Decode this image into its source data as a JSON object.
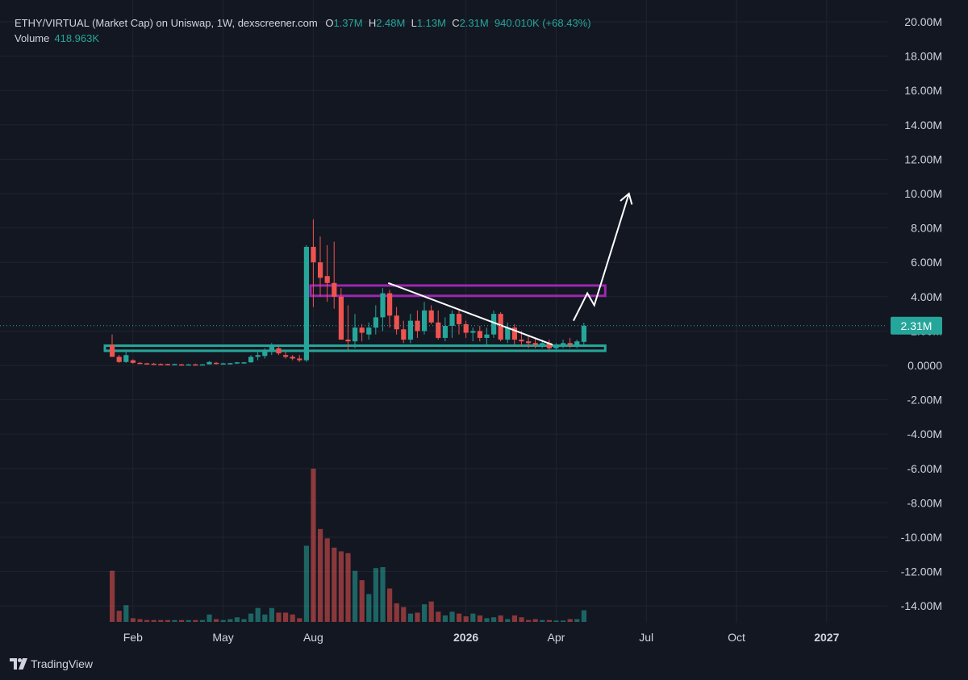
{
  "legend": {
    "title": "ETHY/VIRTUAL (Market Cap) on Uniswap, 1W, dexscreener.com",
    "o_key": "O",
    "o_val": "1.37M",
    "h_key": "H",
    "h_val": "2.48M",
    "l_key": "L",
    "l_val": "1.13M",
    "c_key": "C",
    "c_val": "2.31M",
    "change": "940.010K (+68.43%)",
    "volume_label": "Volume",
    "volume_value": "418.963K"
  },
  "brand": {
    "name": "TradingView",
    "icon": "tradingview-logo-icon"
  },
  "colors": {
    "bg": "#131722",
    "up": "#26a69a",
    "down": "#ef5350",
    "grid": "#1f2430",
    "support_box": "#26a69a",
    "resistance_box": "#9c27b0",
    "drawing": "#ffffff",
    "price_tag": "#26a69a"
  },
  "chart_data": {
    "type": "candlestick",
    "y_ticks": [
      "20.00M",
      "18.00M",
      "16.00M",
      "14.00M",
      "12.00M",
      "10.00M",
      "8.00M",
      "6.00M",
      "4.00M",
      "2.00M",
      "0.0000",
      "-2.00M",
      "-4.00M",
      "-6.00M",
      "-8.00M",
      "-10.00M",
      "-12.00M",
      "-14.00M"
    ],
    "y_tick_values": [
      20,
      18,
      16,
      14,
      12,
      10,
      8,
      6,
      4,
      2,
      0,
      -2,
      -4,
      -6,
      -8,
      -10,
      -12,
      -14
    ],
    "ylim_millions": [
      -14.8,
      21
    ],
    "x_ticks": [
      {
        "label": "Feb",
        "week": 3,
        "bold": false
      },
      {
        "label": "May",
        "week": 16,
        "bold": false
      },
      {
        "label": "Aug",
        "week": 29,
        "bold": false
      },
      {
        "label": "2026",
        "week": 51,
        "bold": true
      },
      {
        "label": "Apr",
        "week": 64,
        "bold": false
      },
      {
        "label": "Jul",
        "week": 77,
        "bold": false
      },
      {
        "label": "Oct",
        "week": 90,
        "bold": false
      },
      {
        "label": "2027",
        "week": 103,
        "bold": true
      }
    ],
    "last_price": "2.31M",
    "last_price_value": 2.31,
    "candles": [
      [
        1.2,
        1.8,
        0.5,
        0.5,
        0.55
      ],
      [
        0.5,
        0.6,
        0.15,
        0.2,
        0.12
      ],
      [
        0.2,
        0.9,
        0.15,
        0.6,
        0.18
      ],
      [
        0.3,
        0.35,
        0.1,
        0.15,
        0.04
      ],
      [
        0.15,
        0.2,
        0.08,
        0.1,
        0.03
      ],
      [
        0.12,
        0.15,
        0.05,
        0.08,
        0.02
      ],
      [
        0.1,
        0.15,
        0.05,
        0.08,
        0.02
      ],
      [
        0.08,
        0.12,
        0.04,
        0.06,
        0.02
      ],
      [
        0.08,
        0.1,
        0.04,
        0.06,
        0.02
      ],
      [
        0.06,
        0.1,
        0.04,
        0.08,
        0.02
      ],
      [
        0.06,
        0.09,
        0.03,
        0.05,
        0.02
      ],
      [
        0.05,
        0.08,
        0.03,
        0.06,
        0.02
      ],
      [
        0.06,
        0.1,
        0.03,
        0.05,
        0.02
      ],
      [
        0.05,
        0.08,
        0.03,
        0.06,
        0.02
      ],
      [
        0.06,
        0.25,
        0.05,
        0.2,
        0.08
      ],
      [
        0.15,
        0.2,
        0.05,
        0.1,
        0.03
      ],
      [
        0.1,
        0.15,
        0.05,
        0.12,
        0.02
      ],
      [
        0.1,
        0.15,
        0.05,
        0.13,
        0.03
      ],
      [
        0.12,
        0.2,
        0.08,
        0.18,
        0.05
      ],
      [
        0.15,
        0.2,
        0.1,
        0.18,
        0.03
      ],
      [
        0.18,
        0.6,
        0.15,
        0.5,
        0.09
      ],
      [
        0.5,
        0.9,
        0.3,
        0.6,
        0.15
      ],
      [
        0.55,
        1.0,
        0.4,
        0.9,
        0.08
      ],
      [
        0.8,
        1.3,
        0.6,
        1.1,
        0.15
      ],
      [
        1.0,
        1.1,
        0.6,
        0.7,
        0.1
      ],
      [
        0.6,
        0.8,
        0.4,
        0.5,
        0.1
      ],
      [
        0.5,
        0.6,
        0.3,
        0.4,
        0.08
      ],
      [
        0.4,
        0.6,
        0.2,
        0.3,
        0.04
      ],
      [
        0.3,
        7.0,
        0.2,
        6.9,
        0.82
      ],
      [
        6.9,
        8.5,
        3.4,
        6.0,
        1.65
      ],
      [
        6.0,
        7.5,
        4.0,
        5.1,
        1.0
      ],
      [
        5.2,
        7.0,
        3.7,
        4.8,
        0.9
      ],
      [
        4.8,
        7.2,
        3.3,
        4.0,
        0.8
      ],
      [
        4.0,
        4.5,
        1.5,
        1.5,
        0.76
      ],
      [
        1.5,
        3.5,
        0.9,
        1.4,
        0.74
      ],
      [
        1.4,
        3.0,
        1.0,
        2.2,
        0.55
      ],
      [
        2.2,
        2.4,
        1.4,
        1.9,
        0.45
      ],
      [
        1.8,
        2.5,
        1.5,
        2.2,
        0.3
      ],
      [
        2.2,
        3.5,
        1.8,
        2.8,
        0.58
      ],
      [
        2.8,
        4.5,
        2.0,
        4.2,
        0.59
      ],
      [
        4.2,
        4.4,
        2.2,
        2.9,
        0.36
      ],
      [
        2.9,
        3.4,
        1.8,
        2.1,
        0.2
      ],
      [
        2.1,
        2.6,
        1.3,
        1.5,
        0.16
      ],
      [
        1.5,
        3.0,
        1.3,
        2.6,
        0.09
      ],
      [
        2.6,
        3.2,
        1.6,
        2.0,
        0.1
      ],
      [
        2.0,
        3.7,
        1.8,
        3.2,
        0.19
      ],
      [
        3.2,
        3.5,
        2.4,
        2.5,
        0.22
      ],
      [
        2.5,
        3.2,
        1.5,
        1.6,
        0.11
      ],
      [
        1.6,
        2.8,
        1.4,
        2.3,
        0.07
      ],
      [
        2.3,
        3.2,
        1.6,
        3.0,
        0.11
      ],
      [
        3.0,
        3.3,
        1.8,
        2.4,
        0.09
      ],
      [
        2.4,
        2.6,
        1.6,
        1.9,
        0.06
      ],
      [
        1.9,
        2.2,
        1.4,
        2.0,
        0.09
      ],
      [
        2.0,
        2.3,
        1.4,
        1.6,
        0.07
      ],
      [
        1.6,
        2.2,
        1.2,
        1.8,
        0.04
      ],
      [
        1.8,
        3.2,
        1.6,
        3.0,
        0.05
      ],
      [
        3.0,
        3.1,
        1.4,
        1.5,
        0.07
      ],
      [
        1.5,
        2.5,
        1.3,
        2.2,
        0.03
      ],
      [
        2.2,
        2.4,
        1.2,
        1.5,
        0.07
      ],
      [
        1.5,
        2.0,
        1.1,
        1.4,
        0.05
      ],
      [
        1.4,
        1.7,
        1.0,
        1.3,
        0.02
      ],
      [
        1.3,
        1.6,
        1.0,
        1.2,
        0.03
      ],
      [
        1.2,
        1.5,
        1.0,
        1.3,
        0.02
      ],
      [
        1.3,
        1.5,
        0.9,
        1.0,
        0.02
      ],
      [
        1.0,
        1.3,
        0.9,
        1.2,
        0.015
      ],
      [
        1.2,
        1.5,
        1.0,
        1.3,
        0.015
      ],
      [
        1.3,
        1.6,
        1.0,
        1.2,
        0.03
      ],
      [
        1.2,
        1.5,
        1.0,
        1.4,
        0.03
      ],
      [
        1.37,
        2.48,
        1.13,
        2.31,
        0.125
      ]
    ],
    "annotations": {
      "support_zone_millions": [
        0.85,
        1.15
      ],
      "resistance_zone_millions": [
        4.05,
        4.65
      ],
      "zones_week_range": [
        0,
        70.5
      ],
      "trendline": [
        [
          39.8,
          4.8
        ],
        [
          63.5,
          1.2
        ]
      ],
      "projection": [
        [
          66.5,
          2.6
        ],
        [
          68.5,
          4.2
        ],
        [
          69.5,
          3.5
        ],
        [
          74.5,
          10.0
        ]
      ]
    }
  }
}
